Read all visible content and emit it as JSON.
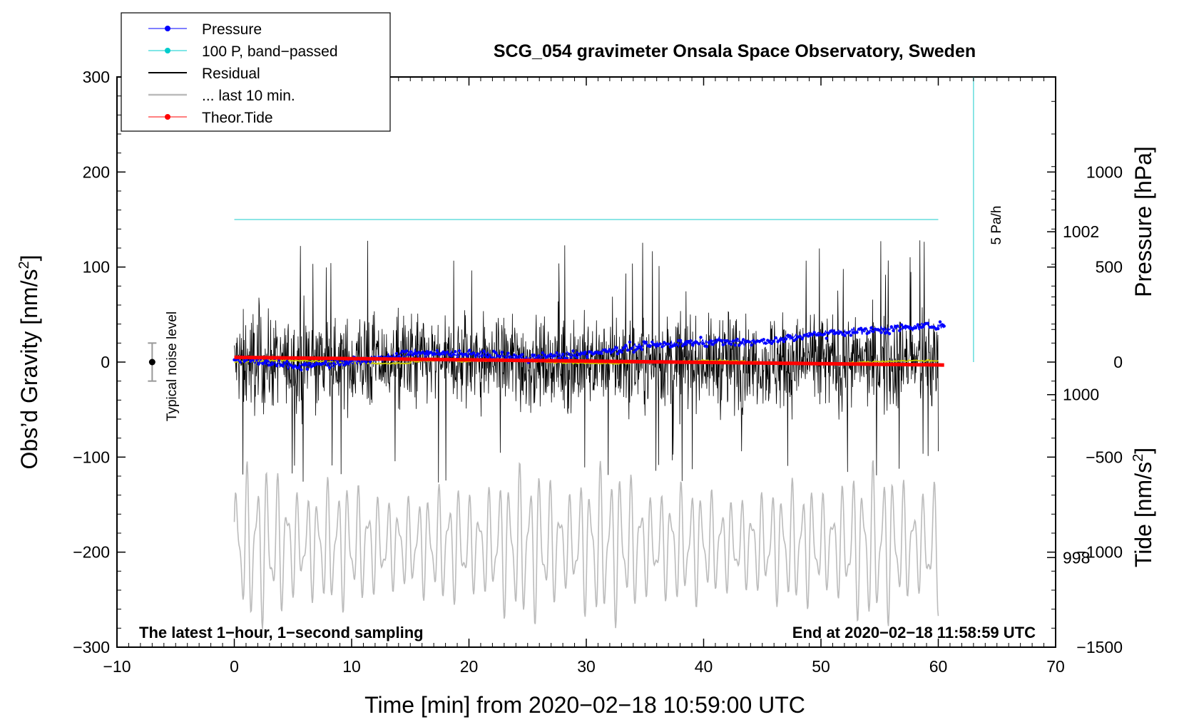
{
  "chart_data": {
    "type": "line",
    "title": "SCG_054 gravimeter Onsala Space Observatory, Sweden",
    "xlabel": "Time [min] from 2020−02−18 10:59:00 UTC",
    "ylabel_left": "Obs’d Gravity [nm/s",
    "ylabel_left_sup": "2",
    "ylabel_left_close": "]",
    "ylabel_right_pressure": "Pressure [hPa]",
    "ylabel_right_tide": "Tide [nm/s",
    "ylabel_right_tide_sup": "2",
    "ylabel_right_tide_close": "]",
    "xlim": [
      -10,
      70
    ],
    "ylim_left": [
      -300,
      300
    ],
    "ylim_pressure": [
      996.9,
      1003.9
    ],
    "ylim_tide": [
      -1500,
      1500
    ],
    "x_ticks": [
      {
        "v": -10,
        "label": "−10"
      },
      {
        "v": 0,
        "label": "0"
      },
      {
        "v": 10,
        "label": "10"
      },
      {
        "v": 20,
        "label": "20"
      },
      {
        "v": 30,
        "label": "30"
      },
      {
        "v": 40,
        "label": "40"
      },
      {
        "v": 50,
        "label": "50"
      },
      {
        "v": 60,
        "label": "60"
      },
      {
        "v": 70,
        "label": "70"
      }
    ],
    "y_left_ticks": [
      {
        "v": 300,
        "label": "300"
      },
      {
        "v": 200,
        "label": "200"
      },
      {
        "v": 100,
        "label": "100"
      },
      {
        "v": 0,
        "label": "0"
      },
      {
        "v": -100,
        "label": "−100"
      },
      {
        "v": -200,
        "label": "−200"
      },
      {
        "v": -300,
        "label": "−300"
      }
    ],
    "y_pressure_ticks": [
      {
        "v": 1002,
        "label": "1002"
      },
      {
        "v": 1000,
        "label": "1000"
      },
      {
        "v": 998,
        "label": "998"
      }
    ],
    "y_tide_ticks": [
      {
        "v": 1000,
        "label": "1000"
      },
      {
        "v": 500,
        "label": "500"
      },
      {
        "v": 0,
        "label": "0"
      },
      {
        "v": -500,
        "label": "−500"
      },
      {
        "v": -1000,
        "label": "−1000"
      },
      {
        "v": -1500,
        "label": "−1500"
      }
    ],
    "legend": [
      {
        "name": "Pressure",
        "color": "#0000ff",
        "marker": true
      },
      {
        "name": "100 P, band−passed",
        "color": "#00cccc",
        "marker": true
      },
      {
        "name": "Residual",
        "color": "#000000",
        "marker": false
      },
      {
        "name": "... last 10 min.",
        "color": "#bbbbbb",
        "marker": false
      },
      {
        "name": "Theor.Tide",
        "color": "#ff0000",
        "marker": true
      }
    ],
    "series": [
      {
        "name": "Pressure",
        "axis": "pressure",
        "color": "#0000ff",
        "x": [
          0,
          5,
          10,
          15,
          20,
          25,
          30,
          35,
          40,
          45,
          50,
          55,
          60
        ],
        "values": [
          1000.45,
          1000.35,
          1000.4,
          1000.5,
          1000.5,
          1000.45,
          1000.5,
          1000.6,
          1000.65,
          1000.65,
          1000.75,
          1000.8,
          1000.85
        ]
      },
      {
        "name": "100 P, band−passed",
        "axis": "left",
        "color": "#00cccc",
        "x": [
          0,
          60
        ],
        "values": [
          150,
          150
        ]
      },
      {
        "name": "Residual",
        "axis": "left",
        "color": "#000000",
        "x": [
          0,
          60
        ],
        "envelope_approx": [
          -100,
          125
        ]
      },
      {
        "name": "Residual smoothed",
        "axis": "left",
        "color": "#cccc00",
        "x": [
          0,
          10,
          17,
          30,
          45,
          60
        ],
        "values": [
          1,
          0,
          3,
          0,
          0,
          -1
        ]
      },
      {
        "name": "... last 10 min.",
        "axis": "left",
        "color": "#bbbbbb",
        "x": [
          0,
          60
        ],
        "envelope_approx": [
          -285,
          -100
        ]
      },
      {
        "name": "Theor.Tide",
        "axis": "tide",
        "color": "#ff0000",
        "x": [
          0,
          60
        ],
        "values": [
          25,
          -15
        ]
      }
    ],
    "vertical_bar": {
      "label": "5 Pa/h",
      "x": 63,
      "y_from": 0,
      "y_to": 300
    },
    "noise_marker": {
      "label": "Typical noise level",
      "x": -7,
      "y": 0,
      "err": 20
    },
    "footnote_left": "The latest 1−hour, 1−second sampling",
    "footnote_right": "End at 2020−02−18 11:58:59 UTC"
  }
}
